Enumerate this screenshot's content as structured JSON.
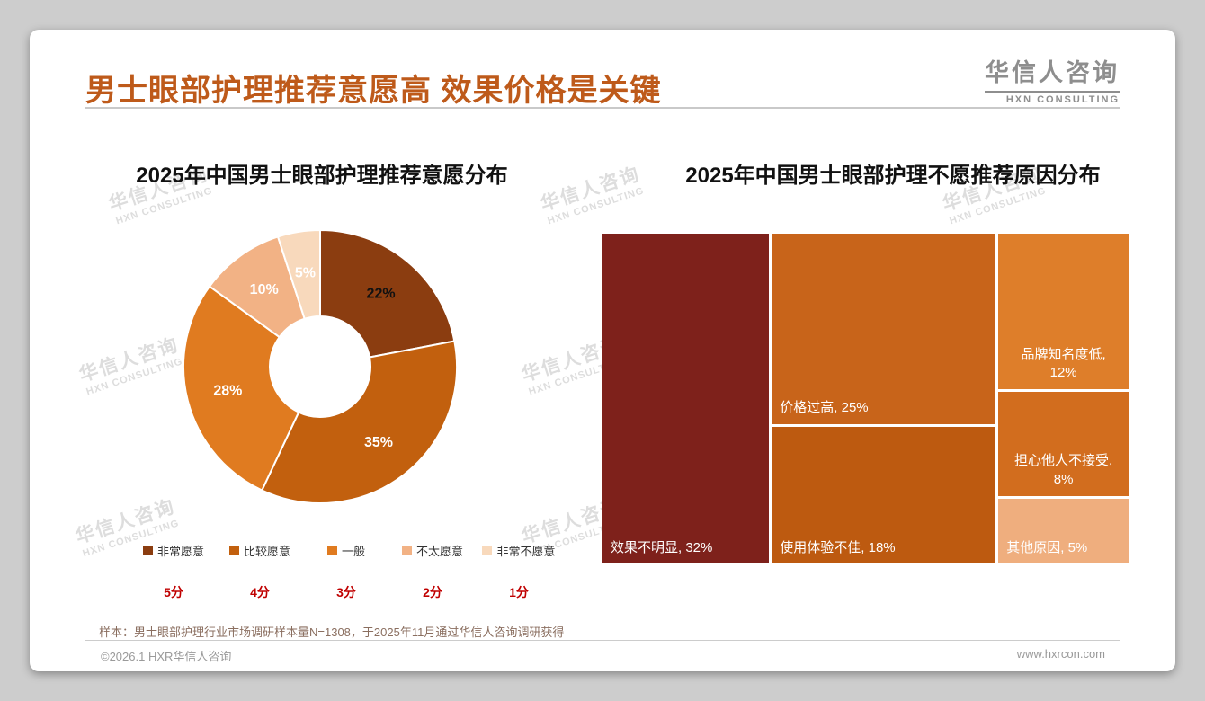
{
  "header": {
    "title": "男士眼部护理推荐意愿高 效果价格是关键",
    "logo_name": "华信人咨询",
    "logo_sub": "HXN CONSULTING"
  },
  "watermark": {
    "line1": "华信人咨询",
    "line2": "HXN CONSULTING"
  },
  "chart_data": [
    {
      "type": "pie",
      "subtype": "donut",
      "title": "2025年中国男士眼部护理推荐意愿分布",
      "categories": [
        "非常愿意",
        "比较愿意",
        "一般",
        "不太愿意",
        "非常不愿意"
      ],
      "values": [
        22,
        35,
        28,
        10,
        5
      ],
      "unit": "%",
      "scores": [
        "5分",
        "4分",
        "3分",
        "2分",
        "1分"
      ],
      "colors": [
        "#8B3D10",
        "#C2600E",
        "#E07B20",
        "#F2B285",
        "#F8D9BC"
      ],
      "label_colors": [
        "#111111",
        "#ffffff",
        "#ffffff",
        "#ffffff",
        "#ffffff"
      ],
      "start_angle": "top",
      "direction": "clockwise",
      "legend_position": "bottom"
    },
    {
      "type": "treemap",
      "title": "2025年中国男士眼部护理不愿推荐原因分布",
      "unit": "%",
      "items": [
        {
          "label": "效果不明显",
          "value": 32,
          "color": "#7E211B",
          "align": "left",
          "wrap": false
        },
        {
          "label": "价格过高",
          "value": 25,
          "color": "#C8641A",
          "align": "left",
          "wrap": false
        },
        {
          "label": "使用体验不佳",
          "value": 18,
          "color": "#BD5A10",
          "align": "left",
          "wrap": false
        },
        {
          "label": "品牌知名度低",
          "value": 12,
          "color": "#DE7E2A",
          "align": "center",
          "wrap": true
        },
        {
          "label": "担心他人不接受",
          "value": 8,
          "color": "#D26D1E",
          "align": "center",
          "wrap": true
        },
        {
          "label": "其他原因",
          "value": 5,
          "color": "#EFAE7E",
          "align": "left",
          "wrap": false
        }
      ],
      "columns": [
        [
          0
        ],
        [
          1,
          2
        ],
        [
          3,
          4,
          5
        ]
      ]
    }
  ],
  "footnote": "样本：男士眼部护理行业市场调研样本量N=1308，于2025年11月通过华信人咨询调研获得",
  "footer": {
    "copyright": "©2026.1 HXR华信人咨询",
    "website": "www.hxrcon.com"
  }
}
